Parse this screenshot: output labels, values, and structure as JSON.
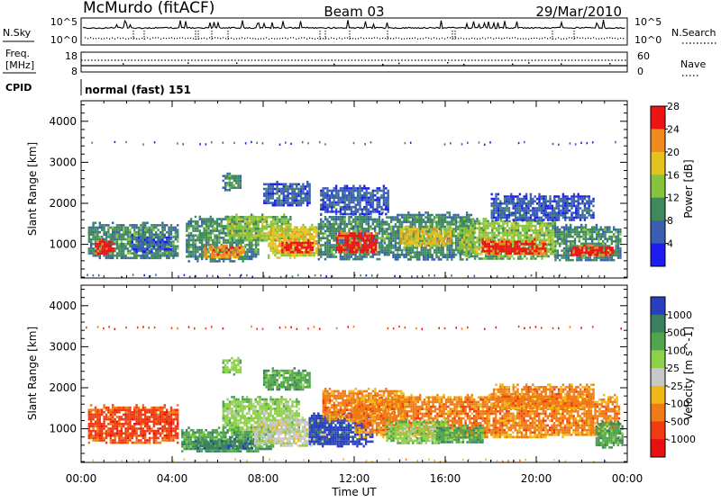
{
  "header": {
    "station": "McMurdo (fitACF)",
    "beam": "Beam 03",
    "date": "29/Mar/2010"
  },
  "noise_panel": {
    "left_label": "N.Sky",
    "right_label": "N.Search",
    "left_ticks": [
      "10^5",
      "10^0"
    ],
    "right_ticks": [
      "10^5",
      "10^0"
    ]
  },
  "freq_panel": {
    "left_label_line1": "Freq.",
    "left_label_line2": "[MHz]",
    "right_label": "Nave",
    "left_ticks": [
      "18",
      "8"
    ],
    "right_ticks": [
      "60",
      "0"
    ]
  },
  "cpid_panel": {
    "label": "CPID",
    "text": "normal (fast) 151"
  },
  "x_axis": {
    "title": "Time UT",
    "tick_labels": [
      "00:00",
      "04:00",
      "08:00",
      "12:00",
      "16:00",
      "20:00",
      "00:00"
    ]
  },
  "chart_data": [
    {
      "type": "heatmap",
      "title": "Power",
      "xlabel": "Time UT",
      "ylabel": "Slant Range [km]",
      "xlim": [
        0,
        24
      ],
      "ylim": [
        180,
        4500
      ],
      "y_tick_labels": [
        "1000",
        "2000",
        "3000",
        "4000"
      ],
      "y_ticks": [
        1000,
        2000,
        3000,
        4000
      ],
      "colorbar_label": "Power [dB]",
      "colorbar_ticks": [
        "4",
        "8",
        "12",
        "16",
        "20",
        "24",
        "28"
      ],
      "colorbar_colors": [
        "#1d1df0",
        "#3a5fb0",
        "#3f8a5c",
        "#86c43e",
        "#e6c21e",
        "#f08a1e",
        "#ee1414"
      ],
      "blobs": [
        {
          "t0": 0.3,
          "t1": 4.2,
          "r0": 650,
          "r1": 1550,
          "level": 2
        },
        {
          "t0": 0.6,
          "t1": 1.4,
          "r0": 780,
          "r1": 1150,
          "level": 6
        },
        {
          "t0": 2.2,
          "t1": 4.0,
          "r0": 850,
          "r1": 1250,
          "level": 1
        },
        {
          "t0": 4.6,
          "t1": 7.8,
          "r0": 600,
          "r1": 1700,
          "level": 2
        },
        {
          "t0": 5.4,
          "t1": 7.2,
          "r0": 700,
          "r1": 1000,
          "level": 5
        },
        {
          "t0": 6.4,
          "t1": 9.2,
          "r0": 1100,
          "r1": 1750,
          "level": 3
        },
        {
          "t0": 8.2,
          "t1": 10.4,
          "r0": 700,
          "r1": 1500,
          "level": 4
        },
        {
          "t0": 8.8,
          "t1": 10.2,
          "r0": 780,
          "r1": 1120,
          "level": 6
        },
        {
          "t0": 10.4,
          "t1": 13.2,
          "r0": 650,
          "r1": 1750,
          "level": 2
        },
        {
          "t0": 11.2,
          "t1": 13.0,
          "r0": 780,
          "r1": 1350,
          "level": 6
        },
        {
          "t0": 13.2,
          "t1": 17.2,
          "r0": 650,
          "r1": 1800,
          "level": 2
        },
        {
          "t0": 14.0,
          "t1": 16.2,
          "r0": 950,
          "r1": 1450,
          "level": 4
        },
        {
          "t0": 16.6,
          "t1": 20.8,
          "r0": 650,
          "r1": 1650,
          "level": 3
        },
        {
          "t0": 17.6,
          "t1": 20.4,
          "r0": 760,
          "r1": 1150,
          "level": 6
        },
        {
          "t0": 20.8,
          "t1": 23.7,
          "r0": 600,
          "r1": 1500,
          "level": 2
        },
        {
          "t0": 21.5,
          "t1": 23.4,
          "r0": 720,
          "r1": 1000,
          "level": 6
        },
        {
          "t0": 10.5,
          "t1": 13.5,
          "r0": 1750,
          "r1": 2450,
          "level": 1
        },
        {
          "t0": 8.0,
          "t1": 10.0,
          "r0": 1950,
          "r1": 2550,
          "level": 1
        },
        {
          "t0": 18.0,
          "t1": 22.5,
          "r0": 1600,
          "r1": 2250,
          "level": 1
        },
        {
          "t0": 6.2,
          "t1": 7.0,
          "r0": 2350,
          "r1": 2750,
          "level": 2
        }
      ],
      "streaks": [
        {
          "t0": 0.2,
          "t1": 23.8,
          "r": 3500,
          "level": 1
        },
        {
          "t0": 0.0,
          "t1": 24.0,
          "r": 260,
          "level": 1
        }
      ]
    },
    {
      "type": "heatmap",
      "title": "Velocity",
      "xlabel": "Time UT",
      "ylabel": "Slant Range [km]",
      "xlim": [
        0,
        24
      ],
      "ylim": [
        180,
        4500
      ],
      "y_tick_labels": [
        "1000",
        "2000",
        "3000",
        "4000"
      ],
      "y_ticks": [
        1000,
        2000,
        3000,
        4000
      ],
      "colorbar_label": "Velocity [m s^-1]",
      "colorbar_ticks": [
        "1000",
        "500",
        "100",
        "25",
        "-25",
        "-100",
        "-500",
        "-1000"
      ],
      "colorbar_colors": [
        "#2a3fc0",
        "#3a8060",
        "#4fa64c",
        "#8ed048",
        "#c8c8c8",
        "#f0b818",
        "#f07a14",
        "#f03a10",
        "#e81010"
      ],
      "blobs": [
        {
          "t0": 0.3,
          "t1": 4.2,
          "r0": 650,
          "r1": 1600,
          "level": 7
        },
        {
          "t0": 4.4,
          "t1": 8.4,
          "r0": 450,
          "r1": 1050,
          "level": 2
        },
        {
          "t0": 5.0,
          "t1": 7.6,
          "r0": 520,
          "r1": 780,
          "level": 1
        },
        {
          "t0": 6.2,
          "t1": 9.6,
          "r0": 900,
          "r1": 1800,
          "level": 3
        },
        {
          "t0": 7.6,
          "t1": 11.0,
          "r0": 600,
          "r1": 1300,
          "level": 4
        },
        {
          "t0": 10.0,
          "t1": 12.8,
          "r0": 600,
          "r1": 1400,
          "level": 0
        },
        {
          "t0": 10.6,
          "t1": 14.2,
          "r0": 1200,
          "r1": 2000,
          "level": 6
        },
        {
          "t0": 12.0,
          "t1": 23.6,
          "r0": 800,
          "r1": 1850,
          "level": 6
        },
        {
          "t0": 13.4,
          "t1": 16.2,
          "r0": 650,
          "r1": 1250,
          "level": 3
        },
        {
          "t0": 15.6,
          "t1": 17.6,
          "r0": 650,
          "r1": 1100,
          "level": 2
        },
        {
          "t0": 22.6,
          "t1": 23.8,
          "r0": 550,
          "r1": 1200,
          "level": 2
        },
        {
          "t0": 8.0,
          "t1": 10.0,
          "r0": 1950,
          "r1": 2500,
          "level": 2
        },
        {
          "t0": 18.0,
          "t1": 22.5,
          "r0": 1500,
          "r1": 2100,
          "level": 6
        },
        {
          "t0": 6.2,
          "t1": 7.0,
          "r0": 2350,
          "r1": 2750,
          "level": 3
        }
      ],
      "streaks": [
        {
          "t0": 0.2,
          "t1": 23.8,
          "r": 3500,
          "level": 7
        },
        {
          "t0": 0.0,
          "t1": 24.0,
          "r": 260,
          "level": 5
        }
      ]
    }
  ]
}
